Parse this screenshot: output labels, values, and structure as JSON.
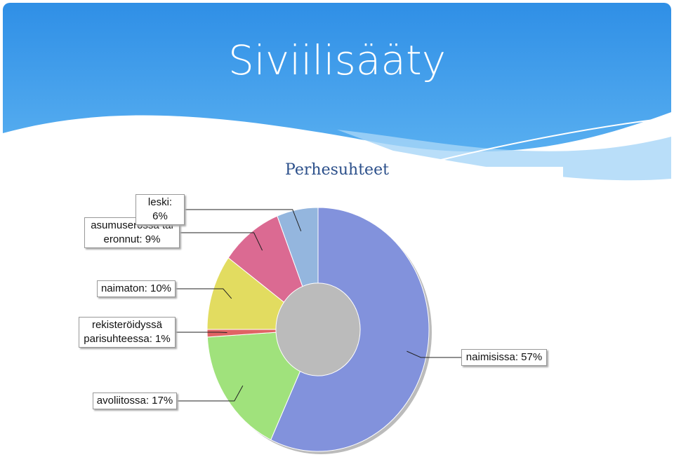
{
  "title": "Siviilisääty",
  "chart_data": {
    "type": "donut",
    "title": "Perhesuhteet",
    "values": [
      57,
      17,
      1,
      10,
      9,
      6
    ],
    "value_labels": [
      "naimisissa: 57%",
      "avoliitossa: 17%",
      "rekisteröidyssä parisuhteessa: 1%",
      "naimaton: 10%",
      "asumuserossa tai eronnut: 9%",
      "leski: 6%"
    ],
    "colors": [
      "#8292dc",
      "#a0e27c",
      "#e06464",
      "#e2dc60",
      "#db6a92",
      "#94b6de"
    ]
  }
}
